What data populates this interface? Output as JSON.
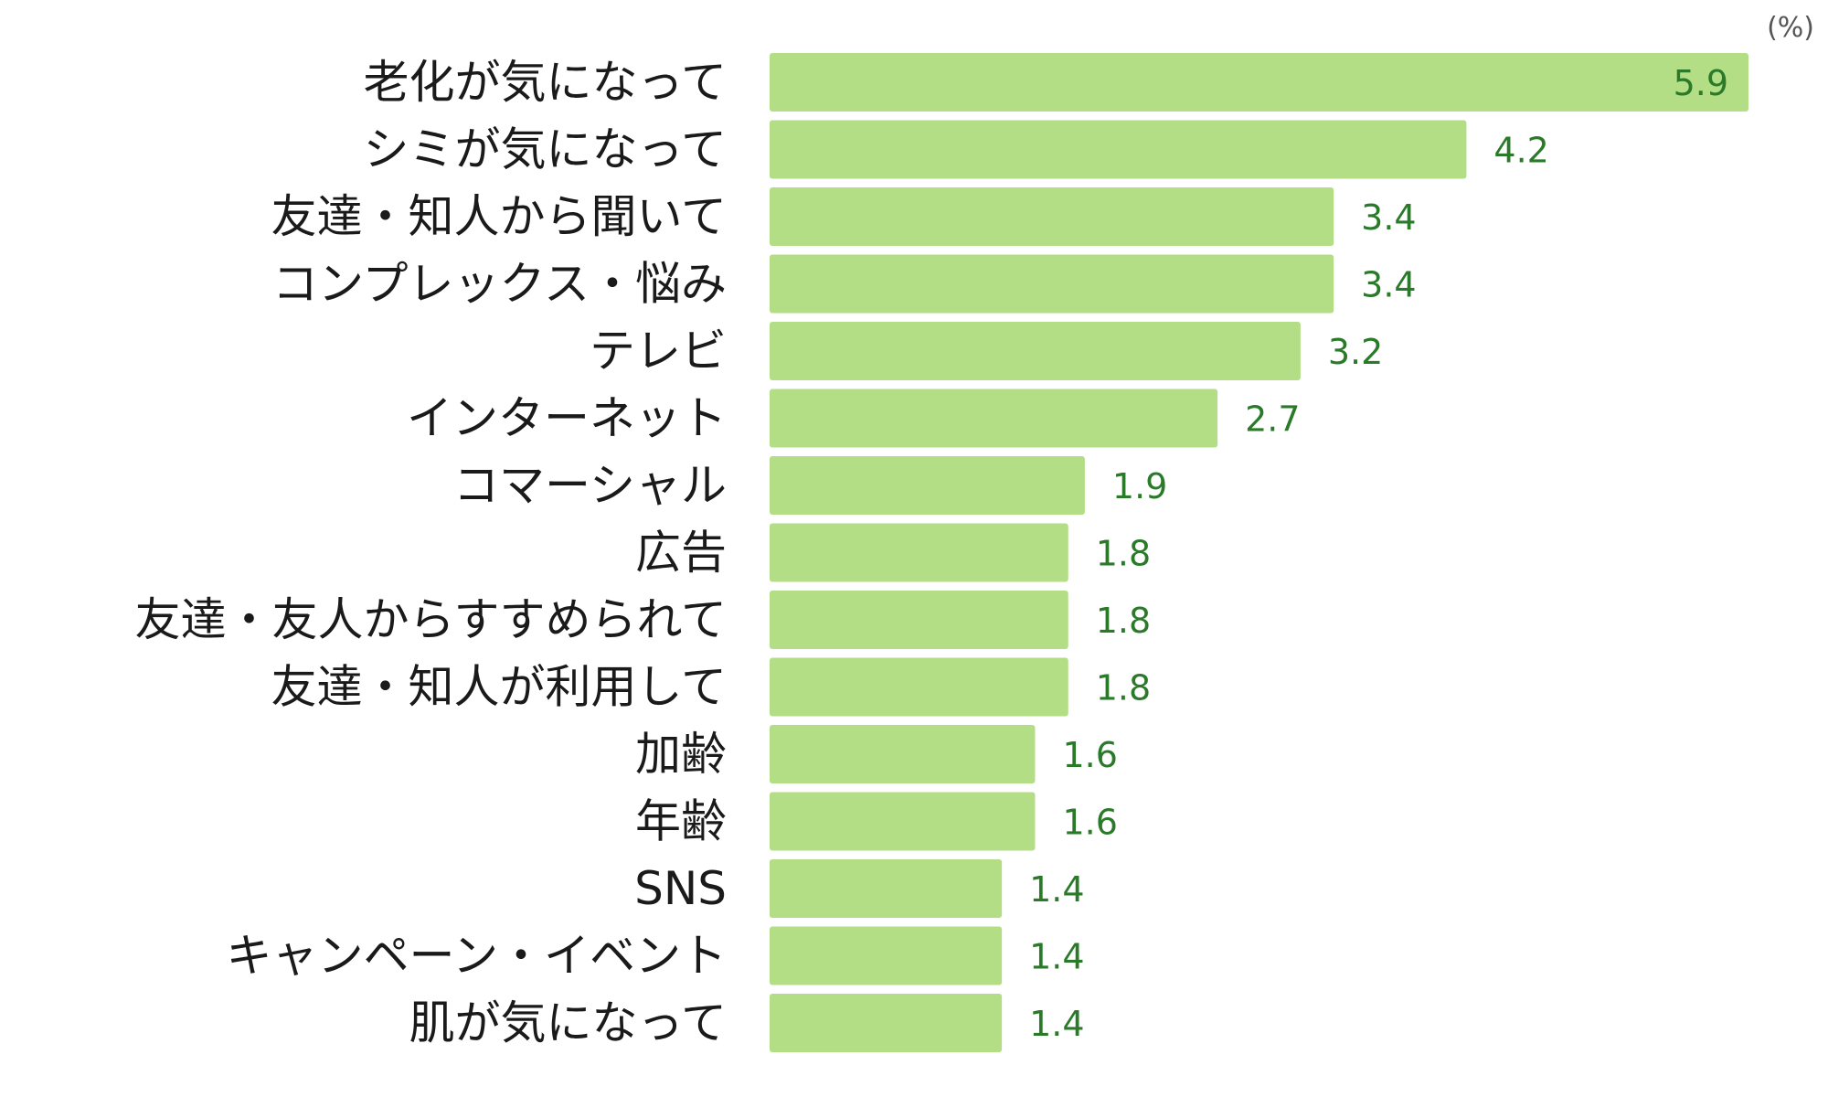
{
  "chart_data": {
    "type": "bar",
    "orientation": "horizontal",
    "unit_label": "(%)",
    "categories": [
      "老化が気になって",
      "シミが気になって",
      "友達・知人から聞いて",
      "コンプレックス・悩み",
      "テレビ",
      "インターネット",
      "コマーシャル",
      "広告",
      "友達・友人からすすめられて",
      "友達・知人が利用して",
      "加齢",
      "年齢",
      "SNS",
      "キャンペーン・イベント",
      "肌が気になって"
    ],
    "values": [
      5.9,
      4.2,
      3.4,
      3.4,
      3.2,
      2.7,
      1.9,
      1.8,
      1.8,
      1.8,
      1.6,
      1.6,
      1.4,
      1.4,
      1.4
    ],
    "value_labels": [
      "5.9",
      "4.2",
      "3.4",
      "3.4",
      "3.2",
      "2.7",
      "1.9",
      "1.8",
      "1.8",
      "1.8",
      "1.6",
      "1.6",
      "1.4",
      "1.4",
      "1.4"
    ],
    "xlim": [
      0,
      6.2
    ],
    "grid": false,
    "legend": "none",
    "colors": {
      "bar": "#b3de85",
      "value_text": "#2a7a2a",
      "label_text": "#1a1a1a"
    }
  }
}
